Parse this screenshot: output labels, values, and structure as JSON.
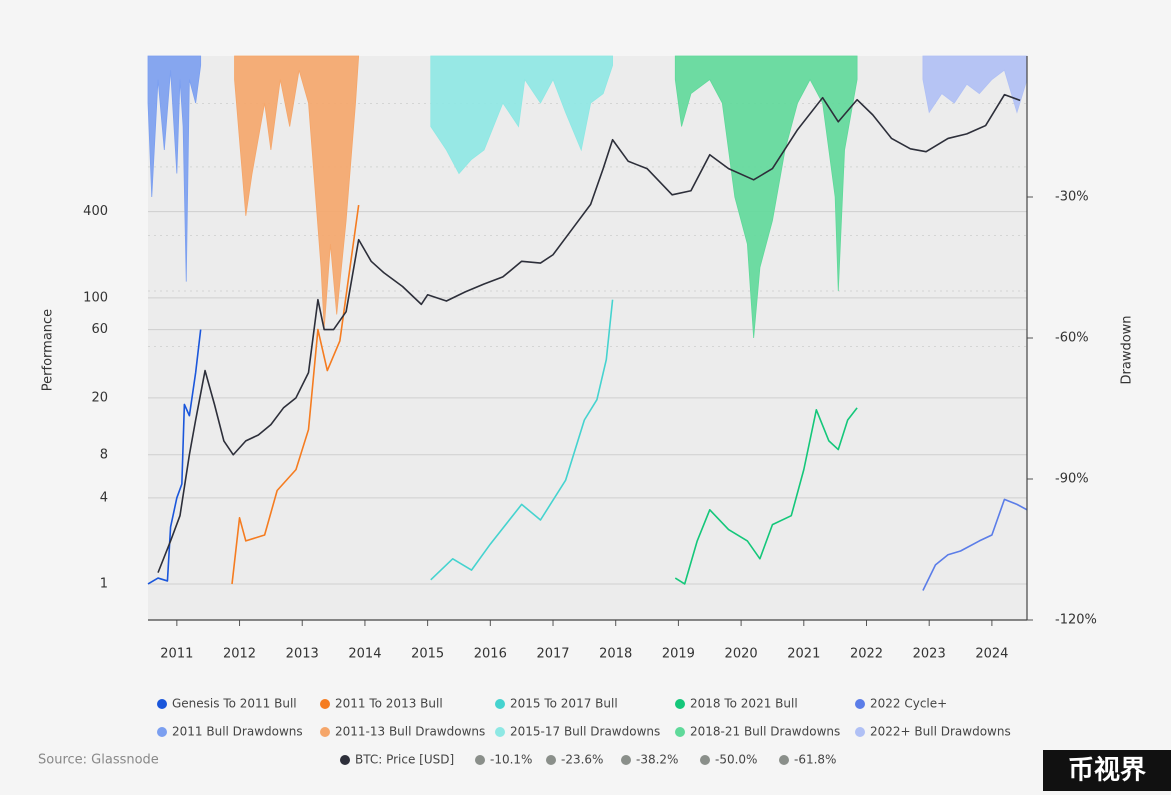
{
  "chart_data": {
    "type": "line",
    "y_label": "Performance",
    "y2_label": "Drawdown",
    "source": "Source: Glassnode",
    "watermark": "币视界",
    "xlim": [
      2010.54,
      2024.56
    ],
    "xticks": [
      2011,
      2012,
      2013,
      2014,
      2015,
      2016,
      2017,
      2018,
      2019,
      2020,
      2021,
      2022,
      2023,
      2024
    ],
    "ylim": [
      0.56,
      4900
    ],
    "log_y": true,
    "yticks": [
      1,
      4,
      8,
      20,
      60,
      100,
      400
    ],
    "y2lim": [
      -120,
      0
    ],
    "y2ticks": [
      {
        "value": -30,
        "label": "-30%"
      },
      {
        "value": -60,
        "label": "-60%"
      },
      {
        "value": -90,
        "label": "-90%"
      },
      {
        "value": -120,
        "label": "-120%"
      }
    ],
    "grid": true,
    "series": [
      {
        "name": "Genesis To 2011 Bull",
        "color": "#1a56db",
        "x": [
          2010.54,
          2010.7,
          2010.85,
          2010.9,
          2011.0,
          2011.08,
          2011.12,
          2011.2,
          2011.3,
          2011.38
        ],
        "values": [
          1,
          1.1,
          1.05,
          2.5,
          4,
          5,
          18,
          15,
          30,
          60
        ]
      },
      {
        "name": "2011 To 2013 Bull",
        "color": "#f57c20",
        "x": [
          2011.88,
          2012.0,
          2012.1,
          2012.4,
          2012.6,
          2012.9,
          2013.1,
          2013.25,
          2013.4,
          2013.6,
          2013.9
        ],
        "values": [
          1,
          2.9,
          2.0,
          2.2,
          4.5,
          6.3,
          12,
          60,
          31,
          50,
          445
        ]
      },
      {
        "name": "2015 To 2017 Bull",
        "color": "#45d3cf",
        "x": [
          2015.05,
          2015.4,
          2015.7,
          2016.0,
          2016.5,
          2016.8,
          2017.2,
          2017.5,
          2017.7,
          2017.85,
          2017.95
        ],
        "values": [
          1.07,
          1.5,
          1.25,
          1.9,
          3.6,
          2.8,
          5.3,
          14,
          19.4,
          37,
          97
        ]
      },
      {
        "name": "2018 To 2021 Bull",
        "color": "#14c77a",
        "x": [
          2018.95,
          2019.1,
          2019.3,
          2019.5,
          2019.8,
          2020.1,
          2020.3,
          2020.5,
          2020.8,
          2021.0,
          2021.2,
          2021.4,
          2021.55,
          2021.7,
          2021.85
        ],
        "values": [
          1.1,
          1.0,
          2.0,
          3.3,
          2.4,
          2.0,
          1.5,
          2.6,
          3.0,
          6.3,
          16.5,
          10,
          8.7,
          14,
          17
        ]
      },
      {
        "name": "2022 Cycle+",
        "color": "#5b7de8",
        "x": [
          2022.9,
          2023.1,
          2023.3,
          2023.5,
          2023.8,
          2024.0,
          2024.2,
          2024.4,
          2024.56
        ],
        "values": [
          0.9,
          1.36,
          1.6,
          1.7,
          2.0,
          2.2,
          3.9,
          3.6,
          3.3
        ]
      },
      {
        "name": "2011 Bull Drawdowns",
        "color": "#7b9ff0",
        "axis": "y2",
        "fill": true,
        "x": [
          2010.54,
          2010.6,
          2010.7,
          2010.8,
          2010.9,
          2011.0,
          2011.05,
          2011.1,
          2011.15,
          2011.2,
          2011.3,
          2011.38
        ],
        "values": [
          -10,
          -30,
          -5,
          -20,
          -3,
          -25,
          -5,
          -15,
          -48,
          -5,
          -10,
          -2
        ]
      },
      {
        "name": "2011-13 Bull Drawdowns",
        "color": "#f5a66a",
        "axis": "y2",
        "fill": true,
        "x": [
          2011.92,
          2012.1,
          2012.2,
          2012.4,
          2012.5,
          2012.65,
          2012.8,
          2012.95,
          2013.1,
          2013.3,
          2013.35,
          2013.45,
          2013.55,
          2013.7,
          2013.85,
          2013.9
        ],
        "values": [
          -5,
          -34,
          -25,
          -10,
          -20,
          -5,
          -15,
          -3,
          -10,
          -45,
          -58,
          -40,
          -55,
          -35,
          -10,
          0
        ]
      },
      {
        "name": "2015-17 Bull Drawdowns",
        "color": "#8ee8e4",
        "axis": "y2",
        "fill": true,
        "x": [
          2015.05,
          2015.3,
          2015.5,
          2015.7,
          2015.9,
          2016.2,
          2016.45,
          2016.55,
          2016.8,
          2017.0,
          2017.2,
          2017.45,
          2017.6,
          2017.8,
          2017.95
        ],
        "values": [
          -15,
          -20,
          -25,
          -22,
          -20,
          -10,
          -15,
          -5,
          -10,
          -5,
          -12,
          -20,
          -10,
          -8,
          -2
        ]
      },
      {
        "name": "2018-21 Bull Drawdowns",
        "color": "#5fd99a",
        "axis": "y2",
        "fill": true,
        "x": [
          2018.95,
          2019.05,
          2019.2,
          2019.5,
          2019.7,
          2019.9,
          2020.1,
          2020.2,
          2020.3,
          2020.5,
          2020.7,
          2020.9,
          2021.1,
          2021.3,
          2021.5,
          2021.55,
          2021.65,
          2021.85
        ],
        "values": [
          -5,
          -15,
          -8,
          -5,
          -10,
          -30,
          -40,
          -60,
          -45,
          -35,
          -20,
          -10,
          -5,
          -10,
          -30,
          -50,
          -20,
          -5
        ]
      },
      {
        "name": "2022+ Bull Drawdowns",
        "color": "#b0c0f5",
        "axis": "y2",
        "fill": true,
        "x": [
          2022.9,
          2023.0,
          2023.2,
          2023.4,
          2023.6,
          2023.8,
          2024.0,
          2024.2,
          2024.4,
          2024.56
        ],
        "values": [
          -5,
          -12,
          -8,
          -10,
          -6,
          -8,
          -5,
          -3,
          -12,
          -5
        ]
      },
      {
        "name": "BTC: Price [USD]",
        "color": "#2d2f3a",
        "x": [
          2010.7,
          2010.9,
          2011.05,
          2011.2,
          2011.3,
          2011.45,
          2011.6,
          2011.75,
          2011.9,
          2012.1,
          2012.3,
          2012.5,
          2012.7,
          2012.9,
          2013.1,
          2013.25,
          2013.35,
          2013.5,
          2013.7,
          2013.9,
          2014.1,
          2014.3,
          2014.6,
          2014.9,
          2015.0,
          2015.3,
          2015.6,
          2015.9,
          2016.2,
          2016.5,
          2016.8,
          2017.0,
          2017.3,
          2017.6,
          2017.8,
          2017.95,
          2018.2,
          2018.5,
          2018.9,
          2019.2,
          2019.5,
          2019.8,
          2020.2,
          2020.5,
          2020.9,
          2021.3,
          2021.55,
          2021.85,
          2022.1,
          2022.4,
          2022.7,
          2022.95,
          2023.3,
          2023.6,
          2023.9,
          2024.2,
          2024.45
        ],
        "values": [
          1.2,
          2.0,
          3,
          8,
          14,
          31,
          18,
          10,
          8,
          10,
          11,
          13,
          17,
          20,
          30,
          97,
          60,
          60,
          80,
          255,
          180,
          150,
          120,
          90,
          105,
          95,
          110,
          125,
          140,
          180,
          175,
          200,
          300,
          450,
          800,
          1273,
          900,
          800,
          525,
          560,
          1000,
          800,
          668,
          800,
          1496,
          2505,
          1700,
          2425,
          1900,
          1300,
          1100,
          1050,
          1300,
          1400,
          1600,
          2630,
          2400
        ]
      }
    ],
    "reference_lines": [
      {
        "name": "-10.1%",
        "value": -10.1,
        "color": "#8a8f8a"
      },
      {
        "name": "-23.6%",
        "value": -23.6,
        "color": "#8a8f8a"
      },
      {
        "name": "-38.2%",
        "value": -38.2,
        "color": "#8a8f8a"
      },
      {
        "name": "-50.0%",
        "value": -50.0,
        "color": "#8a8f8a"
      },
      {
        "name": "-61.8%",
        "value": -61.8,
        "color": "#8a8f8a"
      }
    ]
  }
}
